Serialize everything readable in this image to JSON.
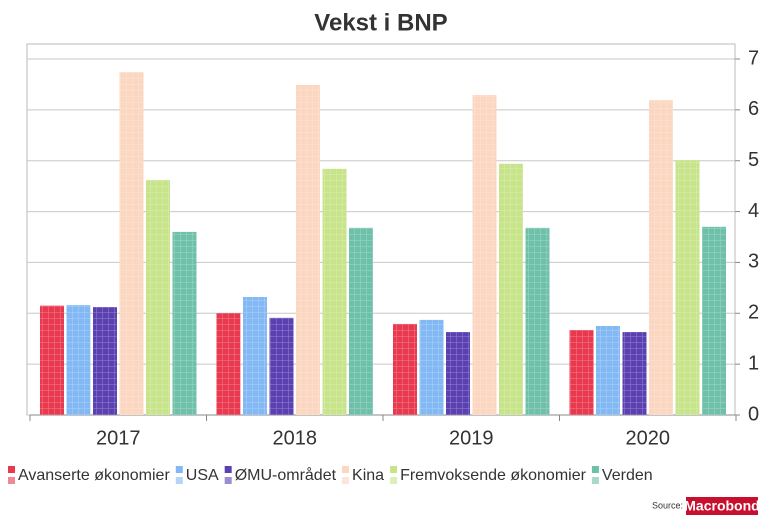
{
  "chart_data": {
    "type": "bar",
    "title": "Vekst i BNP",
    "categories": [
      "2017",
      "2018",
      "2019",
      "2020"
    ],
    "series": [
      {
        "name": "Avanserte økonomier",
        "color": "#e8394f",
        "values": [
          2.15,
          2.0,
          1.79,
          1.67
        ]
      },
      {
        "name": "USA",
        "color": "#82b9f4",
        "values": [
          2.16,
          2.32,
          1.87,
          1.75
        ]
      },
      {
        "name": "ØMU-området",
        "color": "#5b40b2",
        "values": [
          2.12,
          1.91,
          1.63,
          1.63
        ]
      },
      {
        "name": "Kina",
        "color": "#fbd6c0",
        "values": [
          6.74,
          6.49,
          6.29,
          6.19
        ]
      },
      {
        "name": "Fremvoksende økonomier",
        "color": "#c7e48b",
        "values": [
          4.62,
          4.84,
          4.94,
          5.01
        ]
      },
      {
        "name": "Verden",
        "color": "#6fc0a9",
        "values": [
          3.6,
          3.68,
          3.68,
          3.7
        ]
      }
    ],
    "ylim": [
      0,
      7
    ],
    "yticks": [
      0,
      1,
      2,
      3,
      4,
      5,
      6,
      7
    ],
    "grid": true,
    "y_axis_side": "right",
    "legend": "bottom",
    "source": "Source:",
    "source_logo": "Macrobond"
  }
}
